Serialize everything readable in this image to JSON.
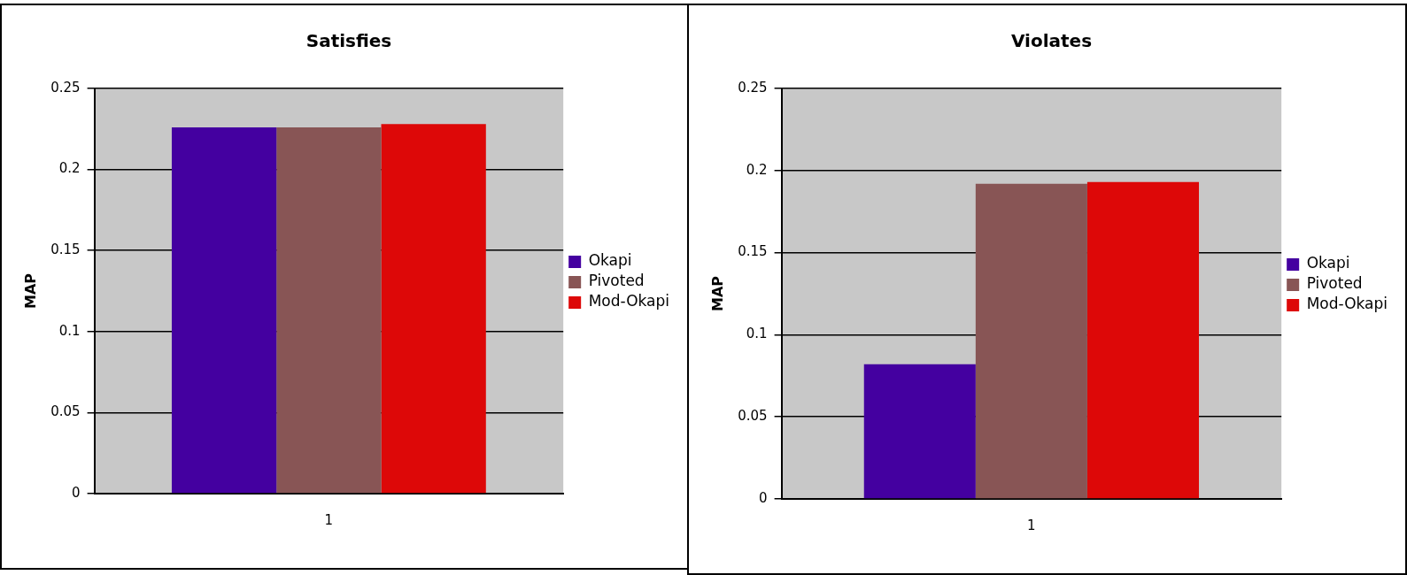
{
  "chart_data": [
    {
      "type": "bar",
      "title": "Satisfies",
      "ylabel": "MAP",
      "categories": [
        "1"
      ],
      "ylim": [
        0,
        0.25
      ],
      "yticks": [
        0,
        0.05,
        0.1,
        0.15,
        0.2,
        0.25
      ],
      "grid": "y",
      "legend": "right",
      "series": [
        {
          "name": "Okapi",
          "color": "#4400a0",
          "values": [
            0.226
          ]
        },
        {
          "name": "Pivoted",
          "color": "#885555",
          "values": [
            0.226
          ]
        },
        {
          "name": "Mod-Okapi",
          "color": "#dd0808",
          "values": [
            0.228
          ]
        }
      ]
    },
    {
      "type": "bar",
      "title": "Violates",
      "ylabel": "MAP",
      "categories": [
        "1"
      ],
      "ylim": [
        0,
        0.25
      ],
      "yticks": [
        0,
        0.05,
        0.1,
        0.15,
        0.2,
        0.25
      ],
      "grid": "y",
      "legend": "right",
      "series": [
        {
          "name": "Okapi",
          "color": "#4400a0",
          "values": [
            0.082
          ]
        },
        {
          "name": "Pivoted",
          "color": "#885555",
          "values": [
            0.192
          ]
        },
        {
          "name": "Mod-Okapi",
          "color": "#dd0808",
          "values": [
            0.193
          ]
        }
      ]
    }
  ]
}
